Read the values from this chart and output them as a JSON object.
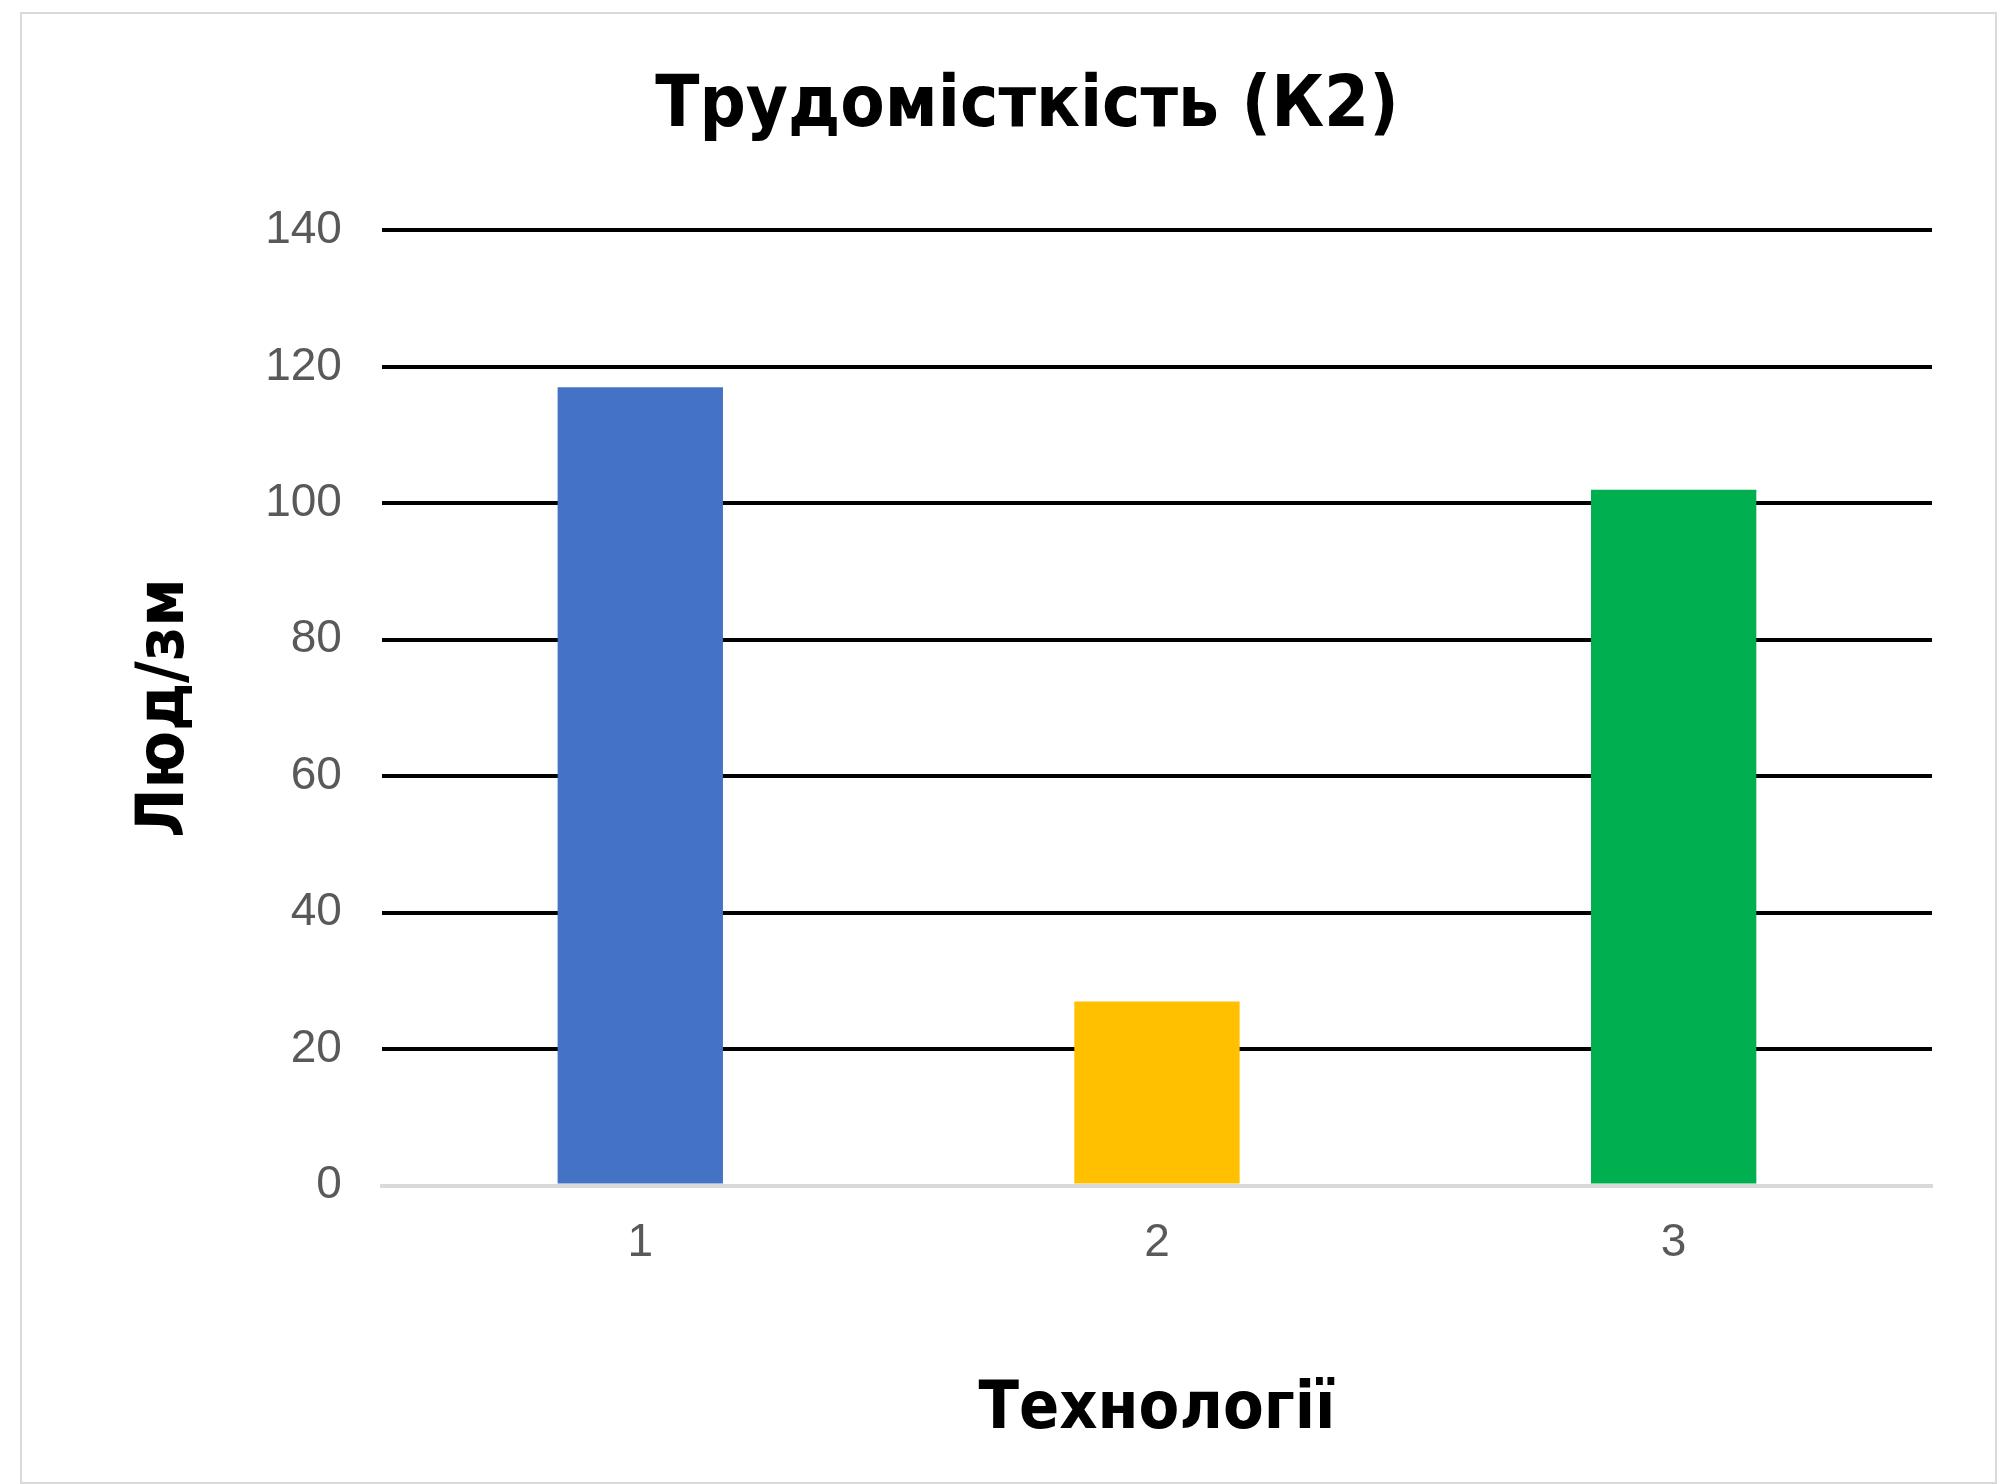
{
  "chart_data": {
    "type": "bar",
    "title": "Трудомісткість (К2)",
    "xlabel": "Технології",
    "ylabel": "Люд/зм",
    "categories": [
      "1",
      "2",
      "3"
    ],
    "values": [
      117,
      27,
      102
    ],
    "colors": [
      "#4472c4",
      "#ffc000",
      "#00b050"
    ],
    "ylim": [
      0,
      140
    ],
    "yticks": [
      0,
      20,
      40,
      60,
      80,
      100,
      120,
      140
    ],
    "grid": "y"
  }
}
